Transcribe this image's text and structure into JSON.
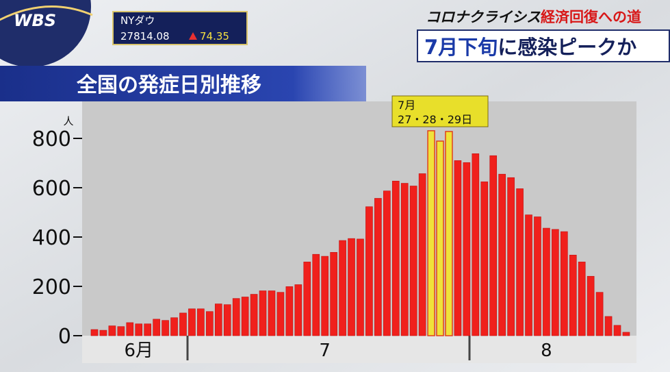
{
  "header": {
    "logo": "WBS",
    "ticker": {
      "name": "NYダウ",
      "price": "27814.08",
      "change": "74.35"
    },
    "series_title": "コロナクライシス",
    "series_subtitle": "経済回復への道",
    "headline": {
      "emphasis": "7月下旬",
      "rest": "に感染ピークか"
    }
  },
  "chart_data": {
    "type": "bar",
    "title": "全国の発症日別推移",
    "y_unit": "人",
    "categories": [
      null,
      null,
      null,
      null,
      null,
      "6月",
      null,
      null,
      null,
      null,
      null,
      null,
      null,
      null,
      null,
      null,
      null,
      null,
      null,
      null,
      null,
      null,
      null,
      null,
      null,
      null,
      "7",
      null,
      null,
      null,
      null,
      null,
      null,
      null,
      null,
      null,
      null,
      null,
      null,
      null,
      null,
      null,
      null,
      null,
      null,
      null,
      null,
      null,
      null,
      null,
      null,
      "8",
      null,
      null,
      null,
      null,
      null,
      null,
      null,
      null,
      null
    ],
    "values": [
      25,
      22,
      40,
      37,
      53,
      48,
      48,
      67,
      62,
      73,
      92,
      109,
      109,
      98,
      129,
      126,
      151,
      157,
      168,
      182,
      182,
      176,
      199,
      207,
      299,
      330,
      322,
      338,
      386,
      394,
      392,
      523,
      557,
      587,
      627,
      618,
      607,
      657,
      831,
      789,
      828,
      710,
      702,
      738,
      624,
      730,
      655,
      641,
      596,
      490,
      482,
      436,
      431,
      422,
      327,
      299,
      241,
      176,
      78,
      42,
      14
    ],
    "color": "#f0201c",
    "highlight": [
      38,
      39,
      40
    ],
    "highlight_color": "#f0e23a",
    "annotation": {
      "line1": "7月",
      "line2": "27・28・29日"
    },
    "ylim": [
      0,
      950
    ],
    "yticks": [
      0,
      200,
      400,
      600,
      800
    ]
  }
}
